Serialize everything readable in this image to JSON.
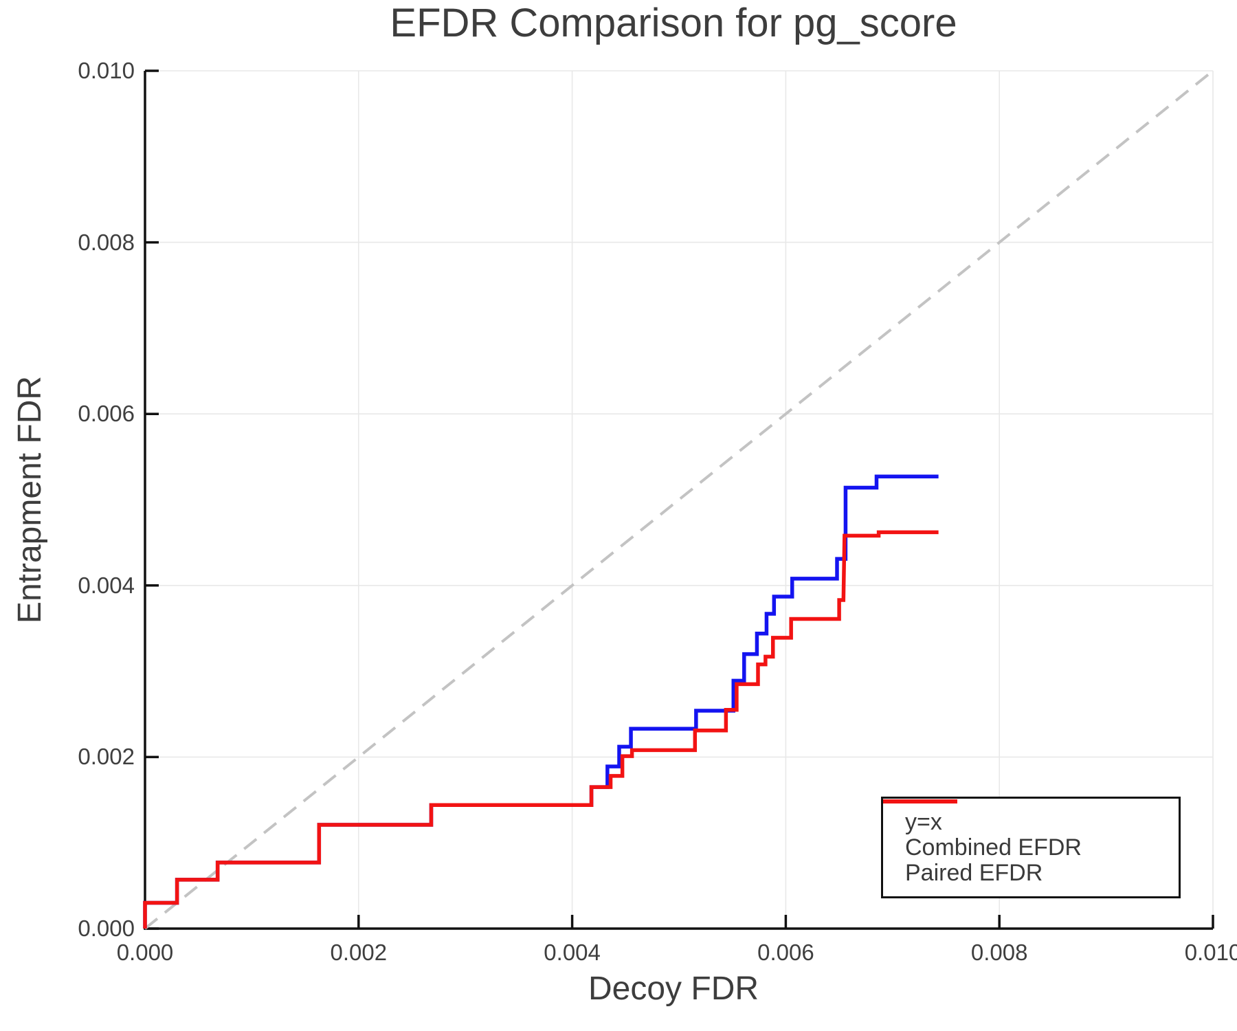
{
  "title": "EFDR Comparison for pg_score",
  "axes": {
    "x_label": "Decoy FDR",
    "y_label": "Entrapment FDR",
    "x_ticks": [
      "0.000",
      "0.002",
      "0.004",
      "0.006",
      "0.008",
      "0.010"
    ],
    "y_ticks": [
      "0.000",
      "0.002",
      "0.004",
      "0.006",
      "0.008",
      "0.010"
    ]
  },
  "legend": {
    "items": [
      {
        "label": "y=x",
        "color": "#c3c3c3",
        "dashed": true
      },
      {
        "label": "Combined EFDR",
        "color": "#1414f0",
        "dashed": false
      },
      {
        "label": "Paired EFDR",
        "color": "#f21313",
        "dashed": false
      }
    ]
  },
  "colors": {
    "grid": "#e8e8e8",
    "spine": "#111111",
    "text": "#3f3f3f",
    "diagonal": "#c3c3c3",
    "combined": "#1414f0",
    "paired": "#f21313"
  },
  "chart_data": {
    "type": "line",
    "title": "EFDR Comparison for pg_score",
    "xlabel": "Decoy FDR",
    "ylabel": "Entrapment FDR",
    "xlim": [
      0.0,
      0.01
    ],
    "ylim": [
      0.0,
      0.01
    ],
    "grid": true,
    "legend_position": "lower right",
    "series": [
      {
        "name": "y=x",
        "style": "dashed",
        "color": "#c3c3c3",
        "points": [
          [
            0.0,
            0.0
          ],
          [
            0.01,
            0.01
          ]
        ]
      },
      {
        "name": "Combined EFDR",
        "style": "step",
        "color": "#1414f0",
        "points": [
          [
            0.0,
            0.0
          ],
          [
            0.0,
            0.0003
          ],
          [
            0.0003,
            0.0003
          ],
          [
            0.0003,
            0.00057
          ],
          [
            0.00068,
            0.00057
          ],
          [
            0.00068,
            0.00077
          ],
          [
            0.00163,
            0.00077
          ],
          [
            0.00163,
            0.00121
          ],
          [
            0.00268,
            0.00121
          ],
          [
            0.00268,
            0.00144
          ],
          [
            0.00418,
            0.00144
          ],
          [
            0.00418,
            0.00165
          ],
          [
            0.00433,
            0.00165
          ],
          [
            0.00433,
            0.00189
          ],
          [
            0.00444,
            0.00189
          ],
          [
            0.00444,
            0.00212
          ],
          [
            0.00455,
            0.00212
          ],
          [
            0.00455,
            0.00233
          ],
          [
            0.00516,
            0.00233
          ],
          [
            0.00516,
            0.00254
          ],
          [
            0.00551,
            0.00254
          ],
          [
            0.00551,
            0.00289
          ],
          [
            0.00561,
            0.00289
          ],
          [
            0.00561,
            0.0032
          ],
          [
            0.00573,
            0.0032
          ],
          [
            0.00573,
            0.00344
          ],
          [
            0.00582,
            0.00344
          ],
          [
            0.00582,
            0.00367
          ],
          [
            0.00589,
            0.00367
          ],
          [
            0.00589,
            0.00387
          ],
          [
            0.00606,
            0.00387
          ],
          [
            0.00606,
            0.00408
          ],
          [
            0.00648,
            0.00408
          ],
          [
            0.00648,
            0.00431
          ],
          [
            0.00656,
            0.00431
          ],
          [
            0.00656,
            0.00514
          ],
          [
            0.00685,
            0.00514
          ],
          [
            0.00685,
            0.00527
          ],
          [
            0.00743,
            0.00527
          ]
        ]
      },
      {
        "name": "Paired EFDR",
        "style": "step",
        "color": "#f21313",
        "points": [
          [
            0.0,
            0.0
          ],
          [
            0.0,
            0.0003
          ],
          [
            0.0003,
            0.0003
          ],
          [
            0.0003,
            0.00057
          ],
          [
            0.00068,
            0.00057
          ],
          [
            0.00068,
            0.00077
          ],
          [
            0.00163,
            0.00077
          ],
          [
            0.00163,
            0.00121
          ],
          [
            0.00268,
            0.00121
          ],
          [
            0.00268,
            0.00144
          ],
          [
            0.00418,
            0.00144
          ],
          [
            0.00418,
            0.00165
          ],
          [
            0.00436,
            0.00165
          ],
          [
            0.00436,
            0.00178
          ],
          [
            0.00447,
            0.00178
          ],
          [
            0.00447,
            0.00201
          ],
          [
            0.00456,
            0.00201
          ],
          [
            0.00456,
            0.00208
          ],
          [
            0.00515,
            0.00208
          ],
          [
            0.00515,
            0.00231
          ],
          [
            0.00544,
            0.00231
          ],
          [
            0.00544,
            0.00255
          ],
          [
            0.00554,
            0.00255
          ],
          [
            0.00554,
            0.00285
          ],
          [
            0.00574,
            0.00285
          ],
          [
            0.00574,
            0.00308
          ],
          [
            0.00581,
            0.00308
          ],
          [
            0.00581,
            0.00317
          ],
          [
            0.00588,
            0.00317
          ],
          [
            0.00588,
            0.00339
          ],
          [
            0.00605,
            0.00339
          ],
          [
            0.00605,
            0.00361
          ],
          [
            0.0065,
            0.00361
          ],
          [
            0.0065,
            0.00383
          ],
          [
            0.00654,
            0.00383
          ],
          [
            0.00655,
            0.00458
          ],
          [
            0.00687,
            0.00458
          ],
          [
            0.00687,
            0.00462
          ],
          [
            0.00743,
            0.00462
          ]
        ]
      }
    ]
  }
}
